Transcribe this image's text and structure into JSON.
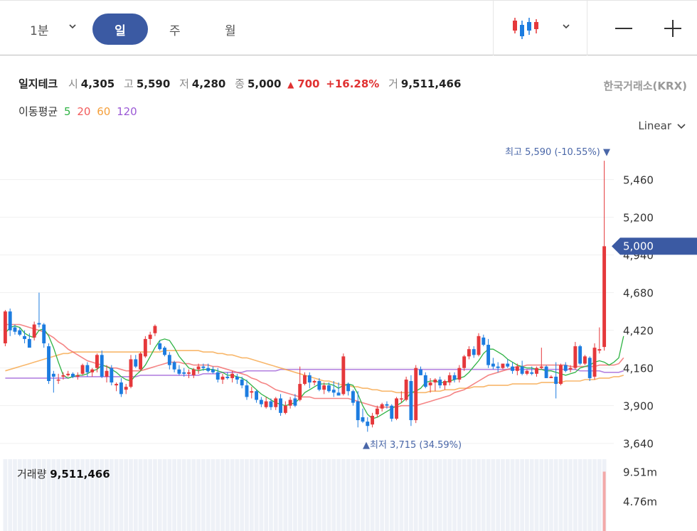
{
  "toolbar": {
    "interval": "1분",
    "tabs": [
      "일",
      "주",
      "월"
    ],
    "active_tab": "일",
    "zoom_out": "—",
    "zoom_in": "+"
  },
  "info": {
    "stock_name": "일지테크",
    "open_label": "시",
    "open": "4,305",
    "high_label": "고",
    "high": "5,590",
    "low_label": "저",
    "low": "4,280",
    "close_label": "종",
    "close": "5,000",
    "change_arrow": "▲",
    "change": "700",
    "change_pct": "+16.28%",
    "volume_label": "거",
    "volume": "9,511,466",
    "exchange": "한국거래소(KRX)"
  },
  "moving_averages": {
    "label": "이동평균",
    "items": [
      {
        "period": "5",
        "color": "#2fb344"
      },
      {
        "period": "20",
        "color": "#f25c5c"
      },
      {
        "period": "60",
        "color": "#f59f3a"
      },
      {
        "period": "120",
        "color": "#9b59d6"
      }
    ]
  },
  "scale": "Linear",
  "colors": {
    "up": "#e5383b",
    "down": "#1c7ce0",
    "accent": "#3b5aa3",
    "vol": "#eef1f7"
  },
  "chart_data": {
    "type": "candlestick",
    "ylim": [
      3560,
      5620
    ],
    "yticks": [
      "5,460",
      "5,200",
      "4,940",
      "4,680",
      "4,420",
      "4,160",
      "3,900",
      "3,640"
    ],
    "ytick_values": [
      5460,
      5200,
      4940,
      4680,
      4420,
      4160,
      3900,
      3640
    ],
    "current_price": {
      "label": "5,000",
      "value": 5000
    },
    "high_annotation": {
      "text": "최고 5,590 (-10.55%) ▼",
      "value": 5590
    },
    "low_annotation": {
      "text": "▲최저 3,715 (34.59%)",
      "value": 3715
    },
    "candles": [
      [
        4330,
        4560,
        4310,
        4550
      ],
      [
        4550,
        4570,
        4380,
        4420
      ],
      [
        4440,
        4460,
        4390,
        4410
      ],
      [
        4420,
        4440,
        4380,
        4390
      ],
      [
        4380,
        4420,
        4330,
        4360
      ],
      [
        4360,
        4400,
        4320,
        4300
      ],
      [
        4370,
        4480,
        4350,
        4460
      ],
      [
        4470,
        4680,
        4440,
        4460
      ],
      [
        4460,
        4470,
        4300,
        4330
      ],
      [
        4310,
        4330,
        4050,
        4070
      ],
      [
        4120,
        4140,
        3990,
        4100
      ],
      [
        4080,
        4120,
        4050,
        4080
      ],
      [
        4100,
        4130,
        4080,
        4110
      ],
      [
        4110,
        4140,
        4100,
        4120
      ],
      [
        4120,
        4130,
        4090,
        4100
      ],
      [
        4100,
        4130,
        4080,
        4110
      ],
      [
        4120,
        4190,
        4110,
        4180
      ],
      [
        4180,
        4200,
        4100,
        4130
      ],
      [
        4130,
        4160,
        4100,
        4150
      ],
      [
        4160,
        4260,
        4130,
        4250
      ],
      [
        4250,
        4280,
        4090,
        4100
      ],
      [
        4100,
        4180,
        4060,
        4140
      ],
      [
        4160,
        4180,
        4040,
        4060
      ],
      [
        4040,
        4060,
        4000,
        4050
      ],
      [
        4060,
        4090,
        3960,
        3980
      ],
      [
        4010,
        4050,
        3980,
        4030
      ],
      [
        4030,
        4250,
        4020,
        4220
      ],
      [
        4220,
        4250,
        4160,
        4170
      ],
      [
        4150,
        4270,
        4140,
        4260
      ],
      [
        4240,
        4380,
        4230,
        4360
      ],
      [
        4360,
        4410,
        4320,
        4390
      ],
      [
        4400,
        4460,
        4380,
        4450
      ],
      [
        4330,
        4350,
        4280,
        4290
      ],
      [
        4300,
        4310,
        4240,
        4250
      ],
      [
        4250,
        4270,
        4150,
        4180
      ],
      [
        4200,
        4210,
        4130,
        4150
      ],
      [
        4150,
        4180,
        4110,
        4120
      ],
      [
        4130,
        4160,
        4100,
        4120
      ],
      [
        4120,
        4150,
        4090,
        4130
      ],
      [
        4110,
        4160,
        4090,
        4150
      ],
      [
        4150,
        4190,
        4120,
        4170
      ],
      [
        4170,
        4190,
        4140,
        4160
      ],
      [
        4160,
        4190,
        4130,
        4140
      ],
      [
        4150,
        4170,
        4120,
        4130
      ],
      [
        4130,
        4160,
        4060,
        4080
      ],
      [
        4080,
        4120,
        4050,
        4100
      ],
      [
        4100,
        4130,
        4080,
        4090
      ],
      [
        4090,
        4140,
        4060,
        4120
      ],
      [
        4100,
        4120,
        4050,
        4080
      ],
      [
        4080,
        4100,
        4020,
        4040
      ],
      [
        4040,
        4080,
        3940,
        3960
      ],
      [
        3990,
        4030,
        3950,
        4000
      ],
      [
        4000,
        4010,
        3920,
        3940
      ],
      [
        3940,
        3960,
        3890,
        3910
      ],
      [
        3890,
        3960,
        3880,
        3930
      ],
      [
        3930,
        3950,
        3870,
        3890
      ],
      [
        3890,
        3960,
        3870,
        3950
      ],
      [
        3950,
        3980,
        3830,
        3850
      ],
      [
        3850,
        3930,
        3840,
        3900
      ],
      [
        3900,
        3960,
        3880,
        3940
      ],
      [
        3950,
        3980,
        3890,
        3900
      ],
      [
        3940,
        4170,
        3930,
        4050
      ],
      [
        4050,
        4130,
        4040,
        4110
      ],
      [
        4110,
        4130,
        4020,
        4060
      ],
      [
        4060,
        4080,
        4040,
        4070
      ],
      [
        4070,
        4090,
        4000,
        4010
      ],
      [
        4010,
        4060,
        3980,
        4040
      ],
      [
        4040,
        4060,
        3990,
        4000
      ],
      [
        4010,
        4070,
        3960,
        3990
      ],
      [
        3990,
        4060,
        3970,
        3970
      ],
      [
        3980,
        4260,
        3970,
        4240
      ],
      [
        4050,
        4060,
        3970,
        4000
      ],
      [
        4000,
        4010,
        3900,
        3920
      ],
      [
        3930,
        4000,
        3750,
        3800
      ],
      [
        3820,
        3880,
        3780,
        3790
      ],
      [
        3790,
        3820,
        3720,
        3760
      ],
      [
        3770,
        3850,
        3750,
        3830
      ],
      [
        3840,
        3900,
        3820,
        3880
      ],
      [
        3880,
        3920,
        3860,
        3910
      ],
      [
        3910,
        3930,
        3880,
        3900
      ],
      [
        3900,
        3910,
        3790,
        3810
      ],
      [
        3810,
        3960,
        3800,
        3950
      ],
      [
        3950,
        4000,
        3920,
        3950
      ],
      [
        3940,
        4100,
        3930,
        4080
      ],
      [
        4070,
        4110,
        3760,
        3800
      ],
      [
        3800,
        4180,
        3780,
        4160
      ],
      [
        4150,
        4170,
        4110,
        4110
      ],
      [
        4110,
        4130,
        4020,
        4030
      ],
      [
        4040,
        4090,
        3990,
        4060
      ],
      [
        4060,
        4090,
        4000,
        4080
      ],
      [
        4080,
        4100,
        4020,
        4040
      ],
      [
        4040,
        4080,
        4010,
        4070
      ],
      [
        4060,
        4130,
        4040,
        4110
      ],
      [
        4110,
        4130,
        4060,
        4080
      ],
      [
        4080,
        4180,
        4060,
        4160
      ],
      [
        4160,
        4250,
        4140,
        4240
      ],
      [
        4240,
        4310,
        4220,
        4290
      ],
      [
        4290,
        4310,
        4230,
        4250
      ],
      [
        4250,
        4400,
        4240,
        4380
      ],
      [
        4370,
        4390,
        4310,
        4320
      ],
      [
        4320,
        4360,
        4160,
        4180
      ],
      [
        4190,
        4230,
        4150,
        4170
      ],
      [
        4170,
        4200,
        4130,
        4160
      ],
      [
        4160,
        4190,
        4150,
        4190
      ],
      [
        4190,
        4220,
        4160,
        4170
      ],
      [
        4170,
        4200,
        4120,
        4140
      ],
      [
        4140,
        4190,
        4110,
        4170
      ],
      [
        4170,
        4210,
        4110,
        4120
      ],
      [
        4120,
        4150,
        4110,
        4140
      ],
      [
        4130,
        4170,
        4110,
        4120
      ],
      [
        4120,
        4170,
        4100,
        4160
      ],
      [
        4160,
        4300,
        4150,
        4170
      ],
      [
        4170,
        4180,
        4090,
        4090
      ],
      [
        4090,
        4110,
        4090,
        4100
      ],
      [
        4100,
        4200,
        3950,
        4050
      ],
      [
        4050,
        4190,
        4040,
        4180
      ],
      [
        4180,
        4200,
        4130,
        4140
      ],
      [
        4150,
        4180,
        4130,
        4160
      ],
      [
        4160,
        4340,
        4150,
        4310
      ],
      [
        4310,
        4320,
        4180,
        4190
      ],
      [
        4190,
        4250,
        4180,
        4240
      ],
      [
        4230,
        4240,
        4070,
        4090
      ],
      [
        4100,
        4330,
        4080,
        4300
      ],
      [
        4280,
        4440,
        4260,
        4290
      ],
      [
        4305,
        5590,
        4280,
        5000
      ]
    ],
    "ma_lines": [
      {
        "period": "5",
        "values": [
          4400,
          4440,
          4450,
          4440,
          4400,
          4380,
          4370,
          4420,
          4430,
          4380,
          4300,
          4200,
          4110,
          4090,
          4100,
          4110,
          4110,
          4120,
          4140,
          4150,
          4180,
          4170,
          4150,
          4130,
          4100,
          4080,
          4070,
          4110,
          4140,
          4180,
          4240,
          4300,
          4350,
          4360,
          4350,
          4300,
          4240,
          4200,
          4160,
          4150,
          4140,
          4150,
          4150,
          4150,
          4140,
          4130,
          4110,
          4110,
          4100,
          4090,
          4070,
          4040,
          4010,
          3980,
          3960,
          3940,
          3920,
          3910,
          3900,
          3910,
          3920,
          3950,
          3990,
          4010,
          4030,
          4050,
          4050,
          4050,
          4040,
          4020,
          4040,
          4050,
          4040,
          3980,
          3900,
          3840,
          3810,
          3820,
          3840,
          3860,
          3880,
          3900,
          3920,
          3950,
          3990,
          4000,
          4020,
          4060,
          4070,
          4070,
          4060,
          4060,
          4070,
          4080,
          4090,
          4100,
          4130,
          4170,
          4210,
          4260,
          4290,
          4290,
          4270,
          4250,
          4220,
          4200,
          4180,
          4170,
          4160,
          4160,
          4150,
          4150,
          4140,
          4140,
          4130,
          4120,
          4110,
          4120,
          4130,
          4160,
          4170,
          4180,
          4200,
          4210,
          4200,
          4180,
          4200,
          4230,
          4380
        ]
      },
      {
        "period": "20",
        "values": [
          4460,
          4460,
          4460,
          4460,
          4450,
          4440,
          4430,
          4420,
          4410,
          4390,
          4370,
          4340,
          4320,
          4290,
          4270,
          4250,
          4230,
          4210,
          4200,
          4190,
          4180,
          4170,
          4160,
          4160,
          4150,
          4140,
          4140,
          4140,
          4140,
          4150,
          4160,
          4170,
          4180,
          4190,
          4200,
          4200,
          4200,
          4190,
          4190,
          4180,
          4180,
          4180,
          4180,
          4170,
          4170,
          4160,
          4150,
          4140,
          4130,
          4120,
          4110,
          4090,
          4080,
          4060,
          4050,
          4030,
          4010,
          4000,
          3990,
          3980,
          3970,
          3960,
          3960,
          3960,
          3950,
          3950,
          3950,
          3950,
          3950,
          3950,
          3950,
          3950,
          3940,
          3930,
          3920,
          3910,
          3900,
          3890,
          3890,
          3890,
          3890,
          3890,
          3900,
          3900,
          3900,
          3900,
          3910,
          3920,
          3930,
          3940,
          3950,
          3960,
          3970,
          3990,
          4000,
          4010,
          4030,
          4050,
          4070,
          4090,
          4110,
          4120,
          4130,
          4140,
          4150,
          4160,
          4170,
          4170,
          4180,
          4180,
          4180,
          4180,
          4180,
          4180,
          4180,
          4180,
          4180,
          4170,
          4170,
          4170,
          4170,
          4170,
          4170,
          4180,
          4180,
          4180,
          4180,
          4190,
          4230
        ]
      },
      {
        "period": "60",
        "values": [
          4140,
          4150,
          4160,
          4170,
          4180,
          4190,
          4200,
          4210,
          4220,
          4230,
          4240,
          4250,
          4260,
          4260,
          4270,
          4270,
          4270,
          4270,
          4270,
          4270,
          4270,
          4270,
          4270,
          4270,
          4270,
          4270,
          4270,
          4270,
          4270,
          4270,
          4270,
          4270,
          4270,
          4280,
          4280,
          4280,
          4280,
          4280,
          4280,
          4280,
          4280,
          4270,
          4270,
          4270,
          4260,
          4260,
          4250,
          4250,
          4240,
          4230,
          4230,
          4220,
          4210,
          4200,
          4190,
          4180,
          4170,
          4160,
          4150,
          4140,
          4130,
          4120,
          4110,
          4100,
          4090,
          4080,
          4070,
          4070,
          4060,
          4050,
          4040,
          4040,
          4030,
          4030,
          4020,
          4020,
          4010,
          4010,
          4000,
          4000,
          4000,
          3990,
          3990,
          3990,
          3990,
          3990,
          3990,
          3990,
          4000,
          4000,
          4000,
          4010,
          4010,
          4010,
          4020,
          4020,
          4020,
          4030,
          4030,
          4030,
          4040,
          4040,
          4040,
          4040,
          4040,
          4050,
          4050,
          4050,
          4050,
          4050,
          4050,
          4060,
          4060,
          4060,
          4060,
          4060,
          4070,
          4070,
          4070,
          4070,
          4080,
          4080,
          4080,
          4090,
          4090,
          4090,
          4100,
          4100,
          4110
        ]
      },
      {
        "period": "120",
        "values": [
          4090,
          4090,
          4090,
          4090,
          4090,
          4090,
          4090,
          4090,
          4090,
          4090,
          4090,
          4090,
          4090,
          4090,
          4100,
          4100,
          4100,
          4100,
          4100,
          4100,
          4100,
          4100,
          4100,
          4100,
          4100,
          4100,
          4100,
          4100,
          4110,
          4110,
          4110,
          4110,
          4110,
          4110,
          4110,
          4110,
          4110,
          4110,
          4110,
          4110,
          4110,
          4120,
          4120,
          4120,
          4120,
          4130,
          4130,
          4130,
          4130,
          4130,
          4140,
          4140,
          4140,
          4140,
          4140,
          4140,
          4140,
          4150,
          4150,
          4150,
          4150,
          4150,
          4150,
          4150,
          4150,
          4150,
          4150,
          4150,
          4150,
          4150,
          4150,
          4150,
          4150,
          4150,
          4150,
          4150,
          4150,
          4150,
          4150,
          4150,
          4150,
          4150,
          4150,
          4150,
          4150,
          4150,
          4150,
          4150,
          4150,
          4150,
          4150,
          4150,
          4150,
          4150,
          4150,
          4150,
          4150,
          4150,
          4150,
          4150,
          4150,
          4150,
          4150,
          4150,
          4150,
          4150,
          4150,
          4150,
          4150,
          4150,
          4150,
          4150,
          4150,
          4150,
          4150,
          4150,
          4150,
          4150,
          4150,
          4140,
          4140,
          4140,
          4140,
          4140,
          4130,
          4130,
          4130,
          4130,
          4140
        ]
      }
    ],
    "volume": {
      "label": "거래량",
      "value": "9,511,466",
      "yticks": [
        "9.51m",
        "4.76m"
      ],
      "ytick_values": [
        9.51,
        4.76
      ],
      "last_bar": 9.51,
      "vmax": 11.5
    }
  }
}
